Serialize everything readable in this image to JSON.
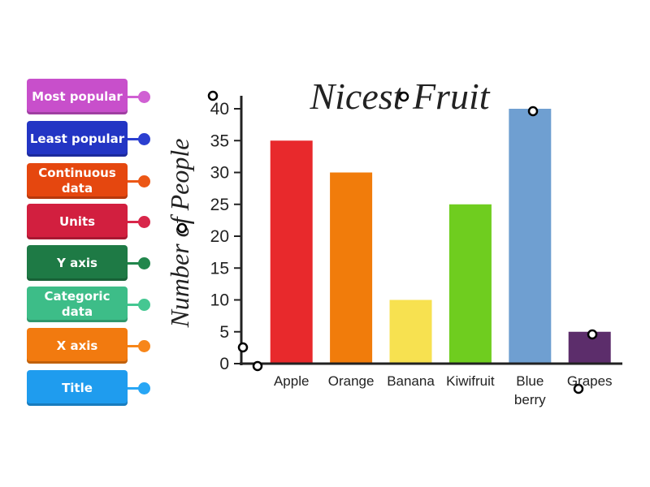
{
  "labels": [
    {
      "text": "Most popular",
      "color": "#c84fcb",
      "pin": "#d060d3"
    },
    {
      "text": "Least popular",
      "color": "#2335c4",
      "pin": "#2b3fd0"
    },
    {
      "text": "Continuous data",
      "color": "#e5470f",
      "pin": "#ec5716"
    },
    {
      "text": "Units",
      "color": "#d21f3f",
      "pin": "#d8264a"
    },
    {
      "text": "Y axis",
      "color": "#1e7a45",
      "pin": "#21864c"
    },
    {
      "text": "Categoric data",
      "color": "#3dbd88",
      "pin": "#45c792"
    },
    {
      "text": "X axis",
      "color": "#f27a0f",
      "pin": "#f7861a"
    },
    {
      "text": "Title",
      "color": "#1f9cee",
      "pin": "#28a6f5"
    }
  ],
  "chart_data": {
    "type": "bar",
    "title": "Nicest Fruit",
    "y_label": "Number of People",
    "categories": [
      "Apple",
      "Orange",
      "Banana",
      "Kiwifruit",
      "Blue berry",
      "Grapes"
    ],
    "values": [
      35,
      30,
      10,
      25,
      40,
      5
    ],
    "colors": [
      "#e8292c",
      "#f17c0b",
      "#f7e150",
      "#6fcd1f",
      "#6f9fd1",
      "#5c2d6b"
    ],
    "ylim": [
      0,
      40
    ],
    "yticks": [
      0,
      5,
      10,
      15,
      20,
      25,
      30,
      35,
      40
    ]
  }
}
